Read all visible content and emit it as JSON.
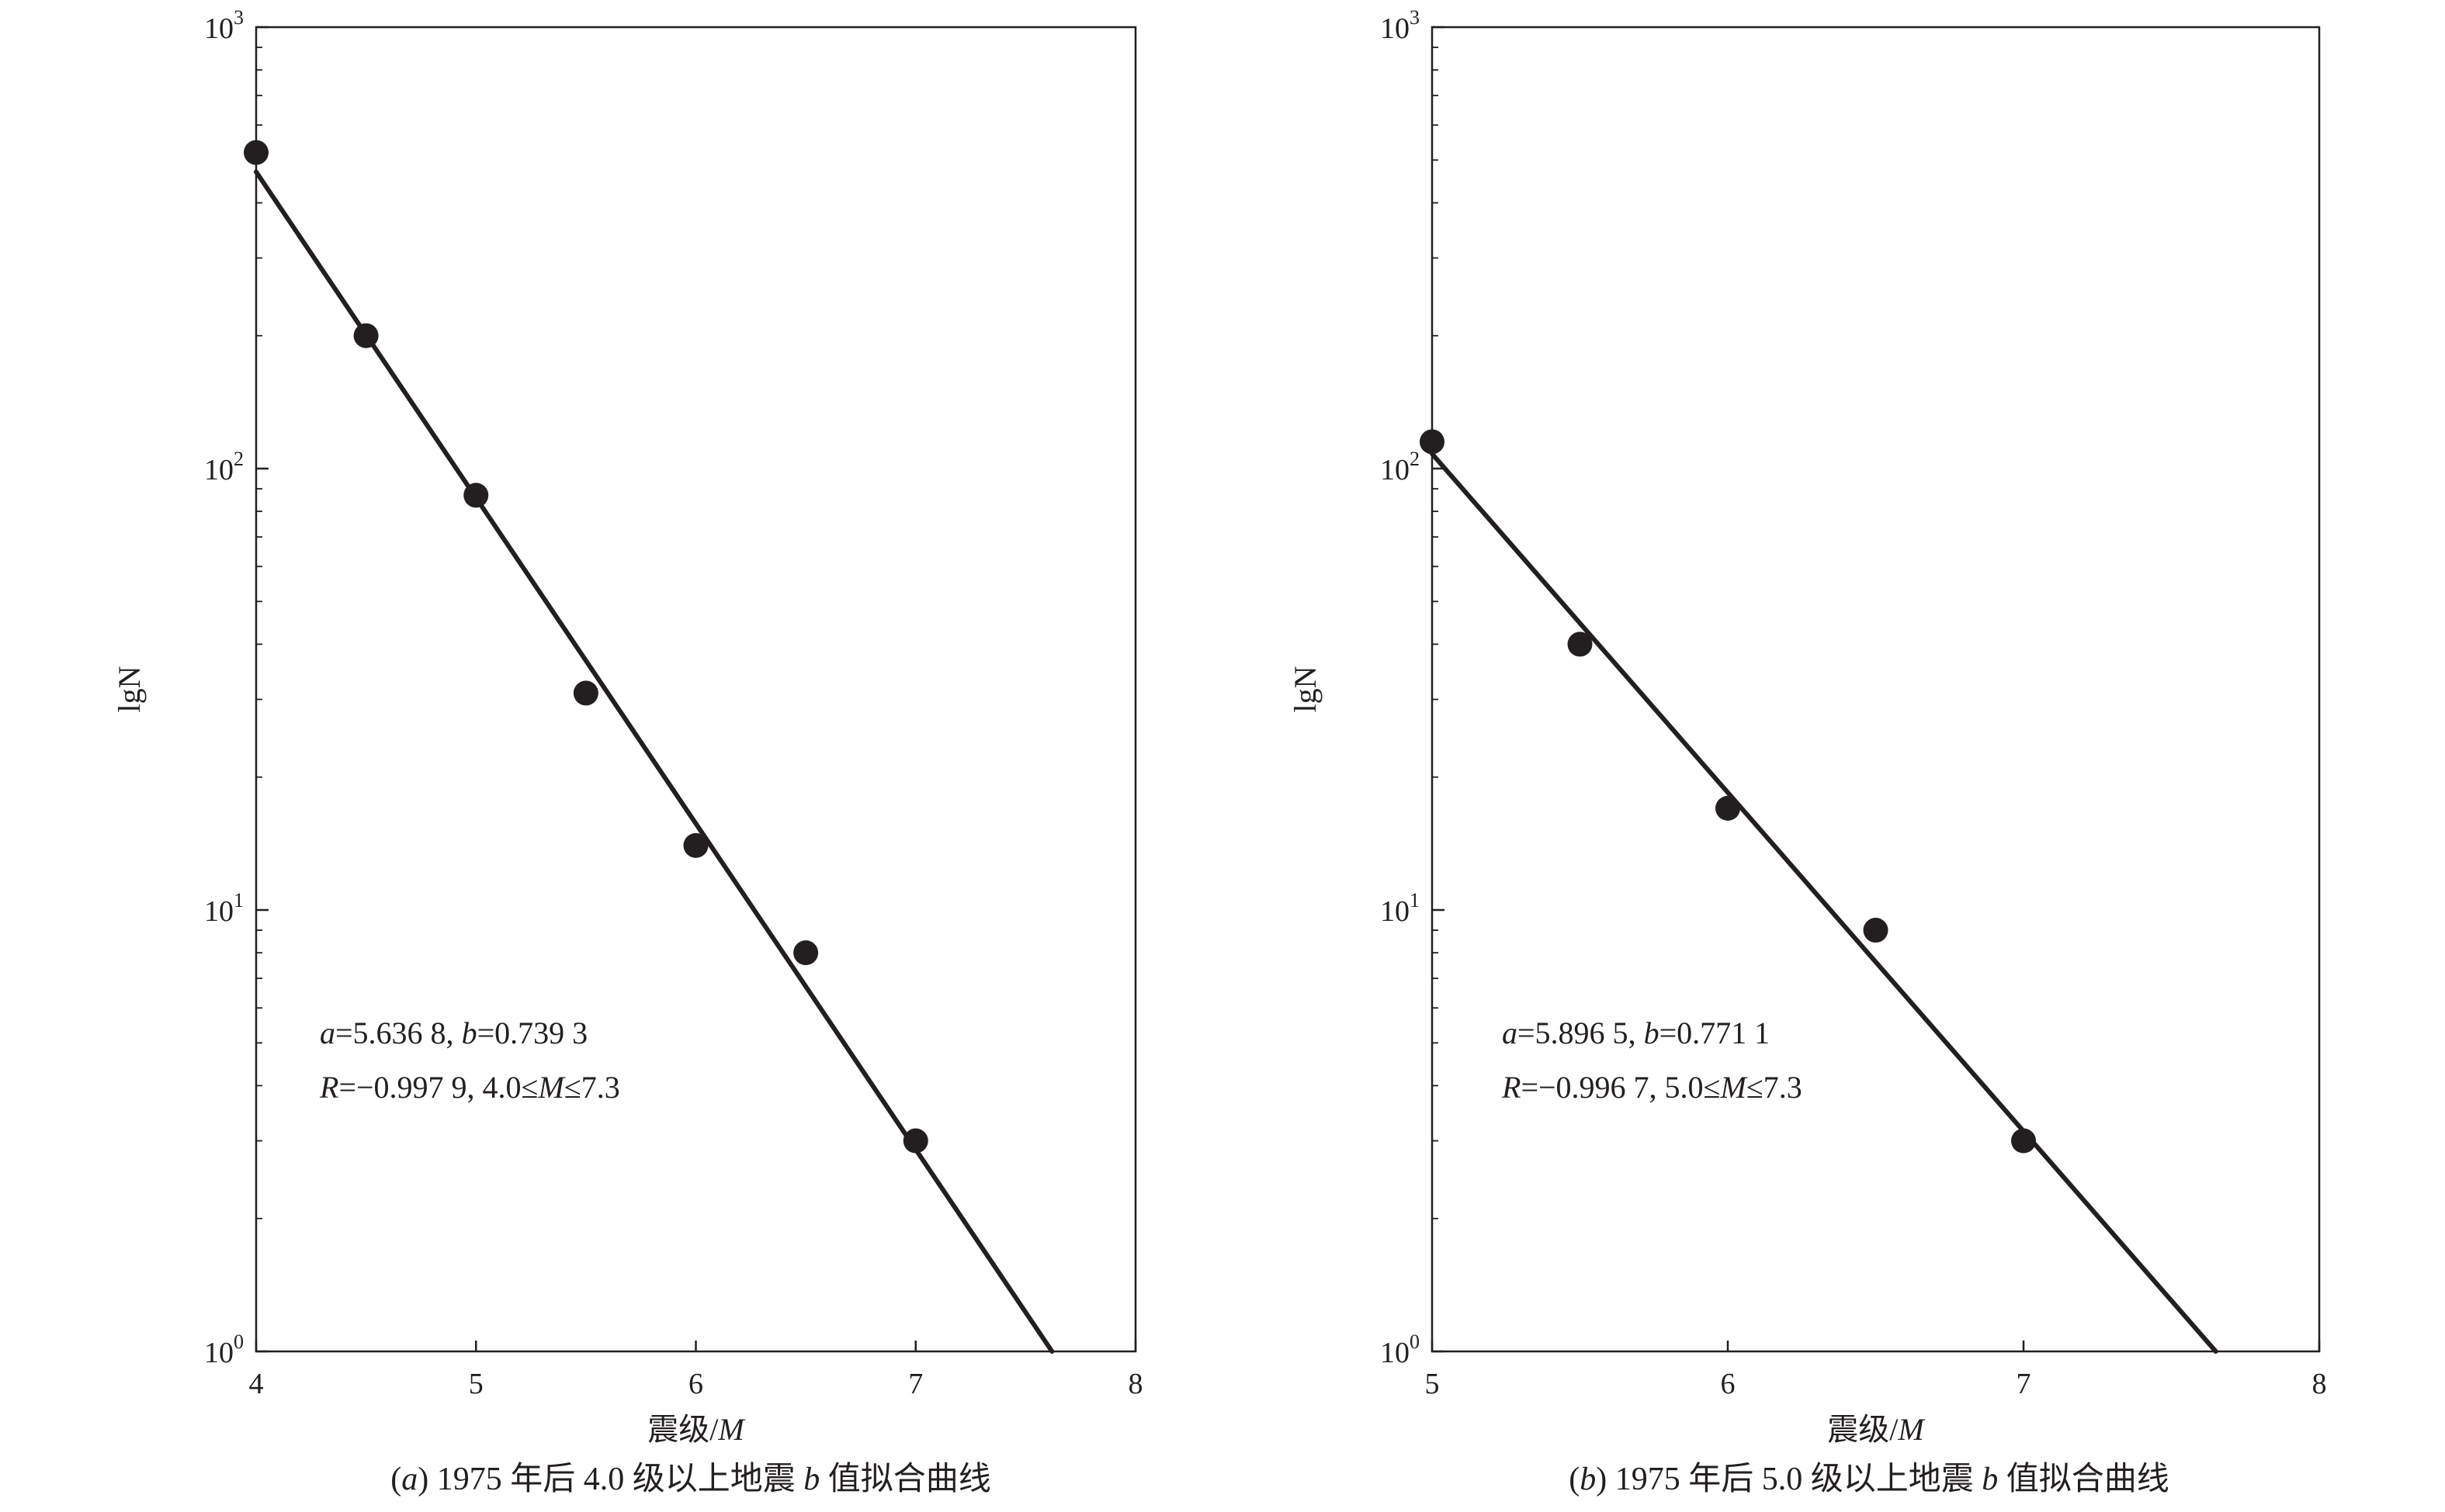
{
  "chart_data": [
    {
      "type": "scatter",
      "xlabel": "震级/M",
      "ylabel": "lgN",
      "xlim": [
        4,
        8
      ],
      "ylim": [
        1,
        1000
      ],
      "y_scale": "log",
      "x_ticks": [
        "4",
        "5",
        "6",
        "7",
        "8"
      ],
      "y_ticks": [
        {
          "base": "10",
          "exp": "0"
        },
        {
          "base": "10",
          "exp": "1"
        },
        {
          "base": "10",
          "exp": "2"
        },
        {
          "base": "10",
          "exp": "3"
        }
      ],
      "series": [
        {
          "kind": "points",
          "x": [
            4.0,
            4.5,
            5.0,
            5.5,
            6.0,
            6.5,
            7.0
          ],
          "y": [
            520,
            200,
            87,
            31,
            14,
            8,
            3
          ]
        },
        {
          "kind": "fit-line",
          "x": [
            4.0,
            7.62
          ],
          "y": [
            470,
            1.0
          ]
        }
      ],
      "annotation": {
        "line1": "a=5.636 8, b=0.739 3",
        "line2": "R=−0.997 9, 4.0≤M≤7.3"
      },
      "caption": "(a) 1975 年后 4.0 级以上地震 b 值拟合曲线"
    },
    {
      "type": "scatter",
      "xlabel": "震级/M",
      "ylabel": "lgN",
      "xlim": [
        5,
        8
      ],
      "ylim": [
        1,
        1000
      ],
      "y_scale": "log",
      "x_ticks": [
        "5",
        "6",
        "7",
        "8"
      ],
      "y_ticks": [
        {
          "base": "10",
          "exp": "0"
        },
        {
          "base": "10",
          "exp": "1"
        },
        {
          "base": "10",
          "exp": "2"
        },
        {
          "base": "10",
          "exp": "3"
        }
      ],
      "series": [
        {
          "kind": "points",
          "x": [
            5.0,
            5.5,
            6.0,
            6.5,
            7.0
          ],
          "y": [
            115,
            40,
            17,
            9,
            3
          ]
        },
        {
          "kind": "fit-line",
          "x": [
            5.0,
            7.65
          ],
          "y": [
            108,
            1.0
          ]
        }
      ],
      "annotation": {
        "line1": "a=5.896 5, b=0.771 1",
        "line2": "R=−0.996 7, 5.0≤M≤7.3"
      },
      "caption": "(b) 1975 年后 5.0 级以上地震 b 值拟合曲线"
    }
  ]
}
